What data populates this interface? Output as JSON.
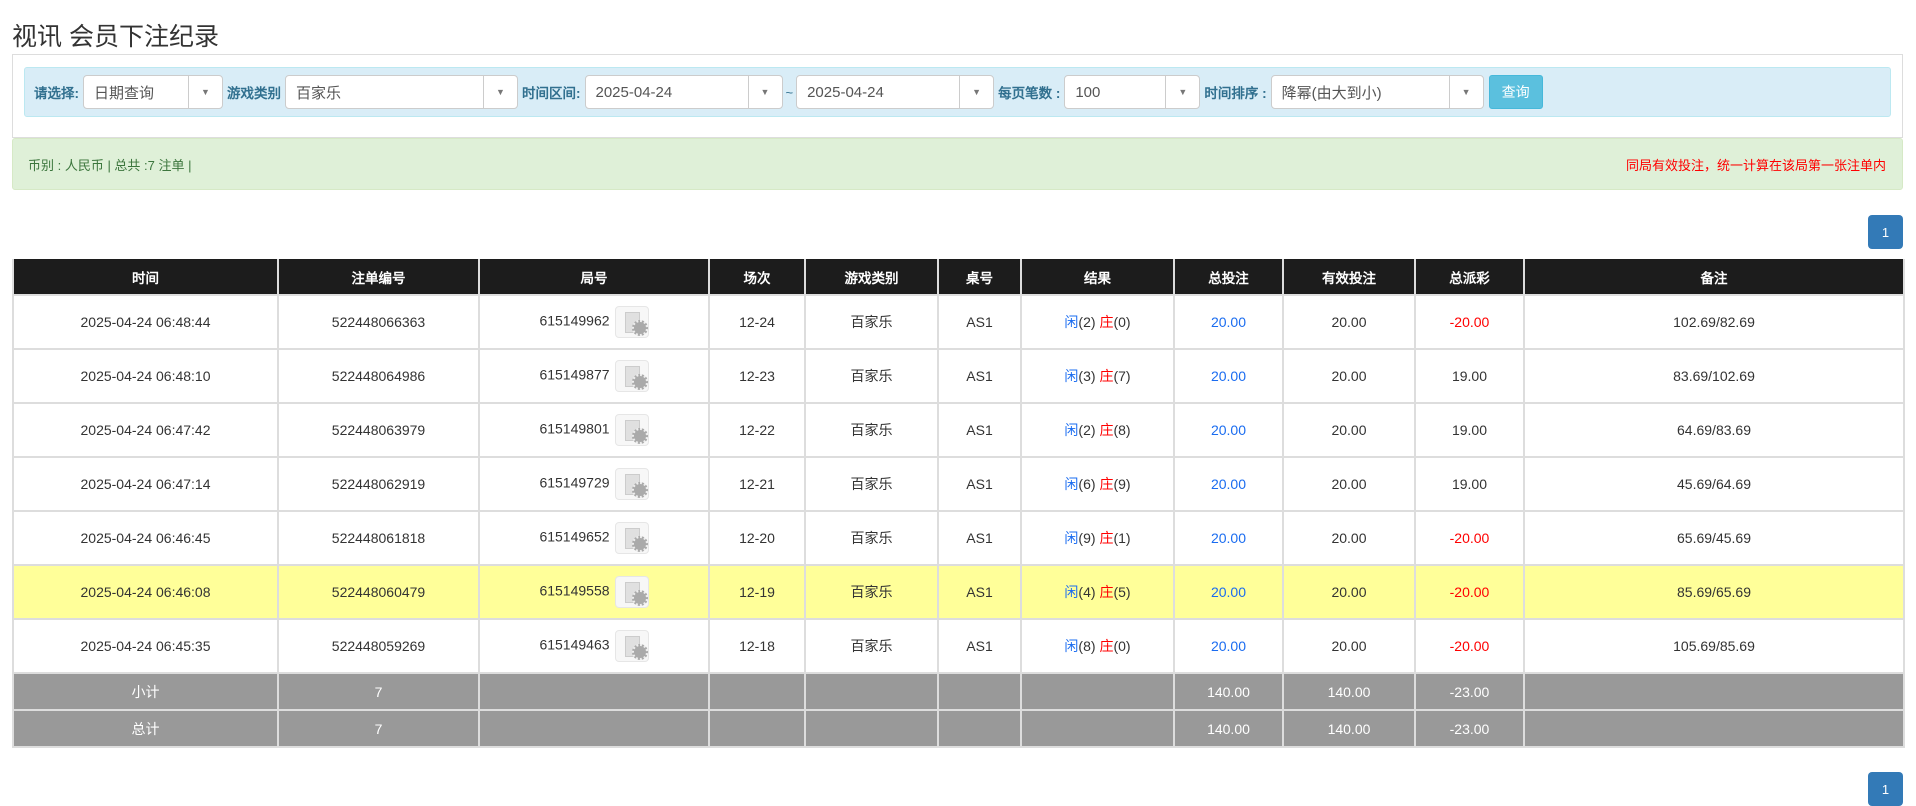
{
  "title": "视讯 会员下注纪录",
  "filters": {
    "select_label": "请选择:",
    "select_value": "日期查询",
    "game_label": "游戏类别",
    "game_value": "百家乐",
    "range_label": "时间区间:",
    "date_from": "2025-04-24",
    "tilde": "~",
    "date_to": "2025-04-24",
    "perpage_label": "每页笔数 :",
    "perpage_value": "100",
    "sort_label": "时间排序 :",
    "sort_value": "降幂(由大到小)",
    "query_button": "查询"
  },
  "summary": {
    "left": "币别 : 人民币 | 总共 :7 注单 |",
    "right": "同局有效投注，统一计算在该局第一张注单内"
  },
  "pagination": {
    "current": "1"
  },
  "colors": {
    "header_bg": "#1c1c1c",
    "highlight": "#ffff99",
    "sum_bg": "#999999",
    "blue": "#1a6cf0",
    "red": "#ff0000",
    "page": "#337ab7"
  },
  "table": {
    "headers": [
      "时间",
      "注单编号",
      "局号",
      "场次",
      "游戏类别",
      "桌号",
      "结果",
      "总投注",
      "有效投注",
      "总派彩",
      "备注"
    ],
    "rows": [
      {
        "time": "2025-04-24 06:48:44",
        "bet_id": "522448066363",
        "round": "615149962",
        "shoe": "12-24",
        "game": "百家乐",
        "table": "AS1",
        "player": "闲",
        "player_pts": "(2)",
        "banker": "庄",
        "banker_pts": "(0)",
        "total": "20.00",
        "valid": "20.00",
        "payout": "-20.00",
        "note": "102.69/82.69",
        "highlight": false
      },
      {
        "time": "2025-04-24 06:48:10",
        "bet_id": "522448064986",
        "round": "615149877",
        "shoe": "12-23",
        "game": "百家乐",
        "table": "AS1",
        "player": "闲",
        "player_pts": "(3)",
        "banker": "庄",
        "banker_pts": "(7)",
        "total": "20.00",
        "valid": "20.00",
        "payout": "19.00",
        "note": "83.69/102.69",
        "highlight": false
      },
      {
        "time": "2025-04-24 06:47:42",
        "bet_id": "522448063979",
        "round": "615149801",
        "shoe": "12-22",
        "game": "百家乐",
        "table": "AS1",
        "player": "闲",
        "player_pts": "(2)",
        "banker": "庄",
        "banker_pts": "(8)",
        "total": "20.00",
        "valid": "20.00",
        "payout": "19.00",
        "note": "64.69/83.69",
        "highlight": false
      },
      {
        "time": "2025-04-24 06:47:14",
        "bet_id": "522448062919",
        "round": "615149729",
        "shoe": "12-21",
        "game": "百家乐",
        "table": "AS1",
        "player": "闲",
        "player_pts": "(6)",
        "banker": "庄",
        "banker_pts": "(9)",
        "total": "20.00",
        "valid": "20.00",
        "payout": "19.00",
        "note": "45.69/64.69",
        "highlight": false
      },
      {
        "time": "2025-04-24 06:46:45",
        "bet_id": "522448061818",
        "round": "615149652",
        "shoe": "12-20",
        "game": "百家乐",
        "table": "AS1",
        "player": "闲",
        "player_pts": "(9)",
        "banker": "庄",
        "banker_pts": "(1)",
        "total": "20.00",
        "valid": "20.00",
        "payout": "-20.00",
        "note": "65.69/45.69",
        "highlight": false
      },
      {
        "time": "2025-04-24 06:46:08",
        "bet_id": "522448060479",
        "round": "615149558",
        "shoe": "12-19",
        "game": "百家乐",
        "table": "AS1",
        "player": "闲",
        "player_pts": "(4)",
        "banker": "庄",
        "banker_pts": "(5)",
        "total": "20.00",
        "valid": "20.00",
        "payout": "-20.00",
        "note": "85.69/65.69",
        "highlight": true
      },
      {
        "time": "2025-04-24 06:45:35",
        "bet_id": "522448059269",
        "round": "615149463",
        "shoe": "12-18",
        "game": "百家乐",
        "table": "AS1",
        "player": "闲",
        "player_pts": "(8)",
        "banker": "庄",
        "banker_pts": "(0)",
        "total": "20.00",
        "valid": "20.00",
        "payout": "-20.00",
        "note": "105.69/85.69",
        "highlight": false
      }
    ],
    "subtotal": {
      "label": "小计",
      "count": "7",
      "total": "140.00",
      "valid": "140.00",
      "payout": "-23.00"
    },
    "grandtotal": {
      "label": "总计",
      "count": "7",
      "total": "140.00",
      "valid": "140.00",
      "payout": "-23.00"
    }
  }
}
